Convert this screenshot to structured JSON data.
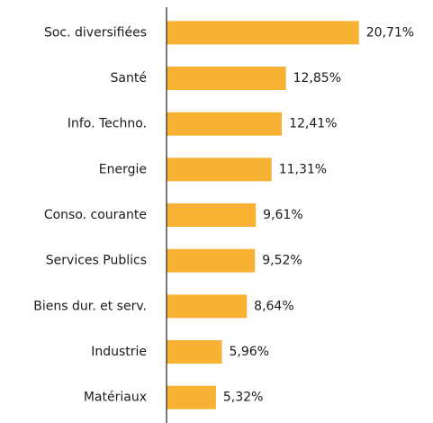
{
  "chart_data": {
    "type": "hbar",
    "categories": [
      "Soc. diversifiées",
      "Santé",
      "Info. Techno.",
      "Energie",
      "Conso. courante",
      "Services Publics",
      "Biens dur. et serv.",
      "Industrie",
      "Matériaux"
    ],
    "values": [
      20.71,
      12.85,
      12.41,
      11.31,
      9.61,
      9.52,
      8.64,
      5.96,
      5.32
    ],
    "value_labels": [
      "20,71%",
      "12,85%",
      "12,41%",
      "11,31%",
      "9,61%",
      "9,52%",
      "8,64%",
      "5,96%",
      "5,32%"
    ],
    "color": "#f7b233",
    "xlim": [
      0,
      25
    ]
  }
}
